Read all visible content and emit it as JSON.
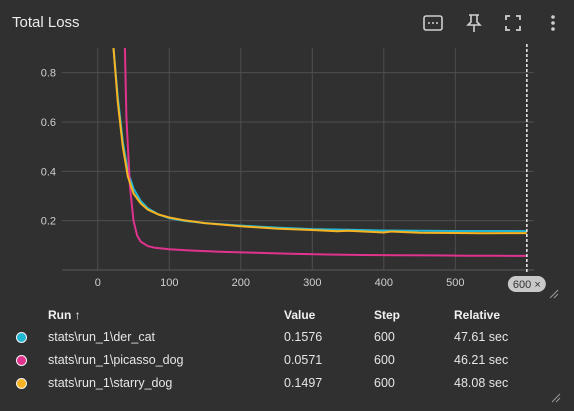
{
  "header": {
    "title": "Total Loss",
    "tools": [
      "fit-domain-icon",
      "pin-icon",
      "fullscreen-icon",
      "more-vert-icon"
    ]
  },
  "chart_data": {
    "type": "line",
    "xlim": [
      -50,
      610
    ],
    "ylim": [
      0,
      0.9
    ],
    "xticks": [
      0,
      100,
      200,
      300,
      400,
      500
    ],
    "yticks": [
      0.2,
      0.4,
      0.6,
      0.8
    ],
    "xtick_labels": [
      "0",
      "100",
      "200",
      "300",
      "400",
      "500"
    ],
    "ytick_labels": [
      "0.2",
      "0.4",
      "0.6",
      "0.8"
    ],
    "grid": true,
    "cursor_step": 600,
    "cursor_label": "600 ×",
    "series": [
      {
        "name": "stats\\run_1\\der_cat",
        "color": "#22b8d4",
        "x": [
          22,
          28,
          35,
          42,
          50,
          60,
          70,
          85,
          100,
          120,
          150,
          200,
          250,
          300,
          350,
          400,
          450,
          500,
          540,
          600
        ],
        "y": [
          0.9,
          0.7,
          0.52,
          0.4,
          0.33,
          0.28,
          0.25,
          0.225,
          0.21,
          0.2,
          0.19,
          0.18,
          0.172,
          0.166,
          0.163,
          0.16,
          0.159,
          0.158,
          0.158,
          0.1576
        ]
      },
      {
        "name": "stats\\run_1\\picasso_dog",
        "color": "#e0338d",
        "x": [
          38,
          40,
          45,
          50,
          55,
          60,
          70,
          80,
          100,
          130,
          170,
          220,
          270,
          320,
          370,
          420,
          470,
          520,
          560,
          600
        ],
        "y": [
          0.9,
          0.62,
          0.34,
          0.2,
          0.14,
          0.115,
          0.097,
          0.09,
          0.084,
          0.079,
          0.074,
          0.07,
          0.066,
          0.063,
          0.061,
          0.06,
          0.059,
          0.058,
          0.0575,
          0.0571
        ]
      },
      {
        "name": "stats\\run_1\\starry_dog",
        "color": "#f7b322",
        "x": [
          22,
          28,
          35,
          42,
          50,
          60,
          70,
          85,
          100,
          120,
          150,
          200,
          250,
          300,
          335,
          350,
          400,
          410,
          450,
          500,
          540,
          600
        ],
        "y": [
          0.9,
          0.68,
          0.5,
          0.38,
          0.31,
          0.27,
          0.245,
          0.225,
          0.213,
          0.202,
          0.19,
          0.177,
          0.168,
          0.162,
          0.157,
          0.159,
          0.152,
          0.156,
          0.151,
          0.15,
          0.149,
          0.1497
        ]
      }
    ]
  },
  "table": {
    "columns": {
      "run": "Run ↑",
      "value": "Value",
      "step": "Step",
      "relative": "Relative"
    },
    "rows": [
      {
        "color": "#22b8d4",
        "run": "stats\\run_1\\der_cat",
        "value": "0.1576",
        "step": "600",
        "relative": "47.61 sec"
      },
      {
        "color": "#e0338d",
        "run": "stats\\run_1\\picasso_dog",
        "value": "0.0571",
        "step": "600",
        "relative": "46.21 sec"
      },
      {
        "color": "#f7b322",
        "run": "stats\\run_1\\starry_dog",
        "value": "0.1497",
        "step": "600",
        "relative": "48.08 sec"
      }
    ]
  }
}
